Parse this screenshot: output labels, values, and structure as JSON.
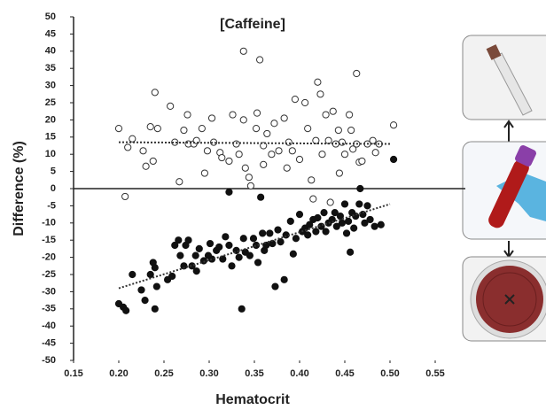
{
  "chart_data": {
    "type": "scatter",
    "title": "[Caffeine]",
    "xlabel": "Hematocrit",
    "ylabel": "Difference (%)",
    "xlim": [
      0.15,
      0.55
    ],
    "ylim": [
      -50,
      50
    ],
    "xticks": [
      0.15,
      {
        "value": 0.2,
        "label": "0.20"
      },
      0.25,
      {
        "value": 0.3,
        "label": "0.30"
      },
      0.35,
      {
        "value": 0.4,
        "label": "0.40"
      },
      0.45,
      {
        "value": 0.5,
        "label": "0.50"
      },
      0.55
    ],
    "yticks": [
      -50,
      -45,
      -40,
      -35,
      -30,
      -25,
      -20,
      -15,
      -10,
      -5,
      0,
      5,
      10,
      15,
      20,
      25,
      30,
      35,
      40,
      45,
      50
    ],
    "series": [
      {
        "color": "#333333",
        "marker": "open",
        "x": [
          0.2,
          0.207,
          0.21,
          0.215,
          0.227,
          0.23,
          0.235,
          0.238,
          0.24,
          0.243,
          0.257,
          0.262,
          0.267,
          0.272,
          0.276,
          0.277,
          0.283,
          0.286,
          0.292,
          0.295,
          0.298,
          0.303,
          0.305,
          0.312,
          0.314,
          0.322,
          0.326,
          0.33,
          0.333,
          0.338,
          0.338,
          0.34,
          0.344,
          0.346,
          0.352,
          0.353,
          0.356,
          0.36,
          0.36,
          0.364,
          0.369,
          0.372,
          0.377,
          0.383,
          0.386,
          0.388,
          0.392,
          0.395,
          0.4,
          0.406,
          0.409,
          0.413,
          0.418,
          0.42,
          0.423,
          0.425,
          0.429,
          0.432,
          0.437,
          0.44,
          0.443,
          0.444,
          0.447,
          0.45,
          0.455,
          0.457,
          0.459,
          0.463,
          0.463,
          0.466,
          0.469,
          0.475,
          0.481,
          0.484,
          0.488,
          0.504,
          0.415,
          0.434
        ],
        "values": [
          17.5,
          -2.3,
          12,
          14.5,
          11,
          6.5,
          18,
          8,
          28,
          17.5,
          24,
          13.5,
          2,
          17,
          21.5,
          13,
          13,
          14,
          17.5,
          4.5,
          11,
          20.5,
          13.5,
          10.5,
          9,
          8,
          21.5,
          13,
          10,
          40,
          20,
          6,
          3.3,
          0.8,
          17.5,
          22,
          37.5,
          12.5,
          7,
          16,
          10,
          19,
          11,
          20.5,
          6,
          13.5,
          11,
          26,
          8.5,
          25,
          17.5,
          2.5,
          14,
          31,
          27.5,
          10,
          21.5,
          14,
          22.5,
          13,
          17,
          4.5,
          13.5,
          10,
          21.5,
          17,
          11.5,
          33.5,
          13,
          7.7,
          8,
          13,
          14,
          10.5,
          13,
          18.5,
          -3,
          -4
        ],
        "trend": {
          "x": [
            0.2,
            0.5
          ],
          "y": [
            13.5,
            13
          ]
        }
      },
      {
        "color": "#111111",
        "marker": "filled",
        "x": [
          0.2,
          0.205,
          0.208,
          0.215,
          0.225,
          0.229,
          0.235,
          0.238,
          0.24,
          0.24,
          0.242,
          0.254,
          0.259,
          0.262,
          0.266,
          0.268,
          0.272,
          0.274,
          0.277,
          0.281,
          0.285,
          0.286,
          0.289,
          0.294,
          0.299,
          0.301,
          0.303,
          0.308,
          0.311,
          0.315,
          0.318,
          0.322,
          0.322,
          0.325,
          0.33,
          0.333,
          0.336,
          0.338,
          0.34,
          0.345,
          0.349,
          0.352,
          0.354,
          0.357,
          0.359,
          0.361,
          0.363,
          0.367,
          0.37,
          0.373,
          0.376,
          0.379,
          0.383,
          0.385,
          0.39,
          0.393,
          0.396,
          0.4,
          0.403,
          0.406,
          0.409,
          0.411,
          0.415,
          0.418,
          0.42,
          0.424,
          0.427,
          0.429,
          0.432,
          0.436,
          0.439,
          0.441,
          0.445,
          0.447,
          0.45,
          0.452,
          0.454,
          0.456,
          0.458,
          0.46,
          0.462,
          0.466,
          0.467,
          0.47,
          0.472,
          0.475,
          0.478,
          0.483,
          0.49,
          0.504
        ],
        "values": [
          -33.5,
          -34.5,
          -35.5,
          -25,
          -29.5,
          -32.5,
          -25,
          -21.5,
          -35,
          -23,
          -28.5,
          -26.5,
          -25.5,
          -16.5,
          -15,
          -19.5,
          -22.5,
          -16.5,
          -15,
          -22.5,
          -19.5,
          -24,
          -17.5,
          -21,
          -19.5,
          -16,
          -20.5,
          -18,
          -17,
          -20.5,
          -14,
          -16.5,
          -1,
          -22.5,
          -18,
          -20,
          -35,
          -14.5,
          -18.5,
          -19.5,
          -14.5,
          -16.5,
          -21.5,
          -2.5,
          -13,
          -18,
          -16.5,
          -13,
          -16,
          -28.5,
          -12,
          -15.5,
          -26.5,
          -13.5,
          -9.5,
          -19,
          -14.5,
          -7.5,
          -12.5,
          -11.5,
          -13.5,
          -10.5,
          -9,
          -12.5,
          -8.5,
          -11,
          -7,
          -12.5,
          -10,
          -9,
          -7,
          -11,
          -8,
          -10,
          -4.5,
          -13,
          -9.5,
          -18.5,
          -7,
          -11.5,
          -8,
          -4.5,
          0,
          -7.5,
          -10,
          -5,
          -9,
          -11,
          -10.5,
          8.5
        ],
        "trend": {
          "x": [
            0.2,
            0.5
          ],
          "y": [
            -29,
            -4.5
          ]
        }
      }
    ]
  }
}
